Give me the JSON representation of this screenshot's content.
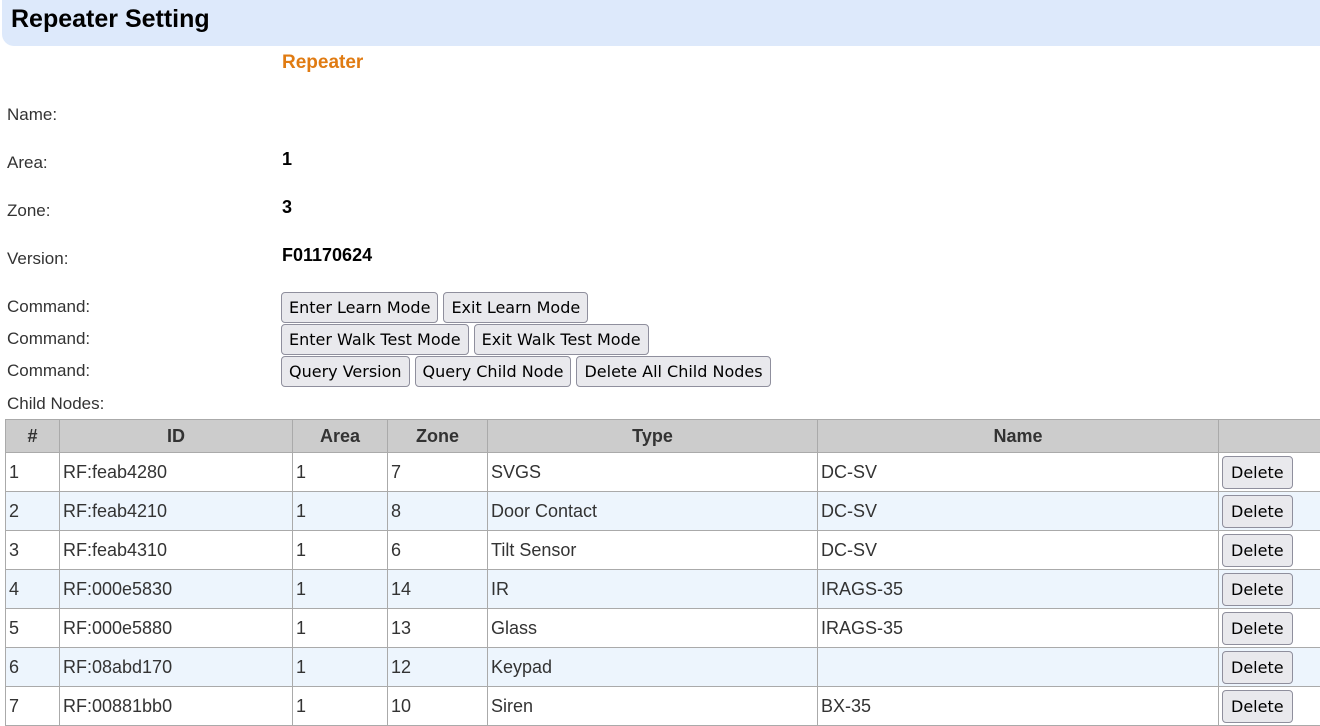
{
  "header": {
    "title": "Repeater Setting"
  },
  "device": {
    "type": "Repeater",
    "name_label": "Name:",
    "name": "",
    "area_label": "Area:",
    "area": "1",
    "zone_label": "Zone:",
    "zone": "3",
    "version_label": "Version:",
    "version": "F01170624"
  },
  "commands": {
    "label": "Command:",
    "enter_learn": "Enter Learn Mode",
    "exit_learn": "Exit Learn Mode",
    "enter_walk": "Enter Walk Test Mode",
    "exit_walk": "Exit Walk Test Mode",
    "query_version": "Query Version",
    "query_child": "Query Child Node",
    "delete_all": "Delete All Child Nodes"
  },
  "child_nodes": {
    "label": "Child Nodes:",
    "columns": [
      "#",
      "ID",
      "Area",
      "Zone",
      "Type",
      "Name",
      ""
    ],
    "delete_label": "Delete",
    "rows": [
      [
        "1",
        "RF:feab4280",
        "1",
        "7",
        "SVGS",
        "DC-SV"
      ],
      [
        "2",
        "RF:feab4210",
        "1",
        "8",
        "Door Contact",
        "DC-SV"
      ],
      [
        "3",
        "RF:feab4310",
        "1",
        "6",
        "Tilt Sensor",
        "DC-SV"
      ],
      [
        "4",
        "RF:000e5830",
        "1",
        "14",
        "IR",
        "IRAGS-35"
      ],
      [
        "5",
        "RF:000e5880",
        "1",
        "13",
        "Glass",
        "IRAGS-35"
      ],
      [
        "6",
        "RF:08abd170",
        "1",
        "12",
        "Keypad",
        ""
      ],
      [
        "7",
        "RF:00881bb0",
        "1",
        "10",
        "Siren",
        "BX-35"
      ]
    ]
  }
}
